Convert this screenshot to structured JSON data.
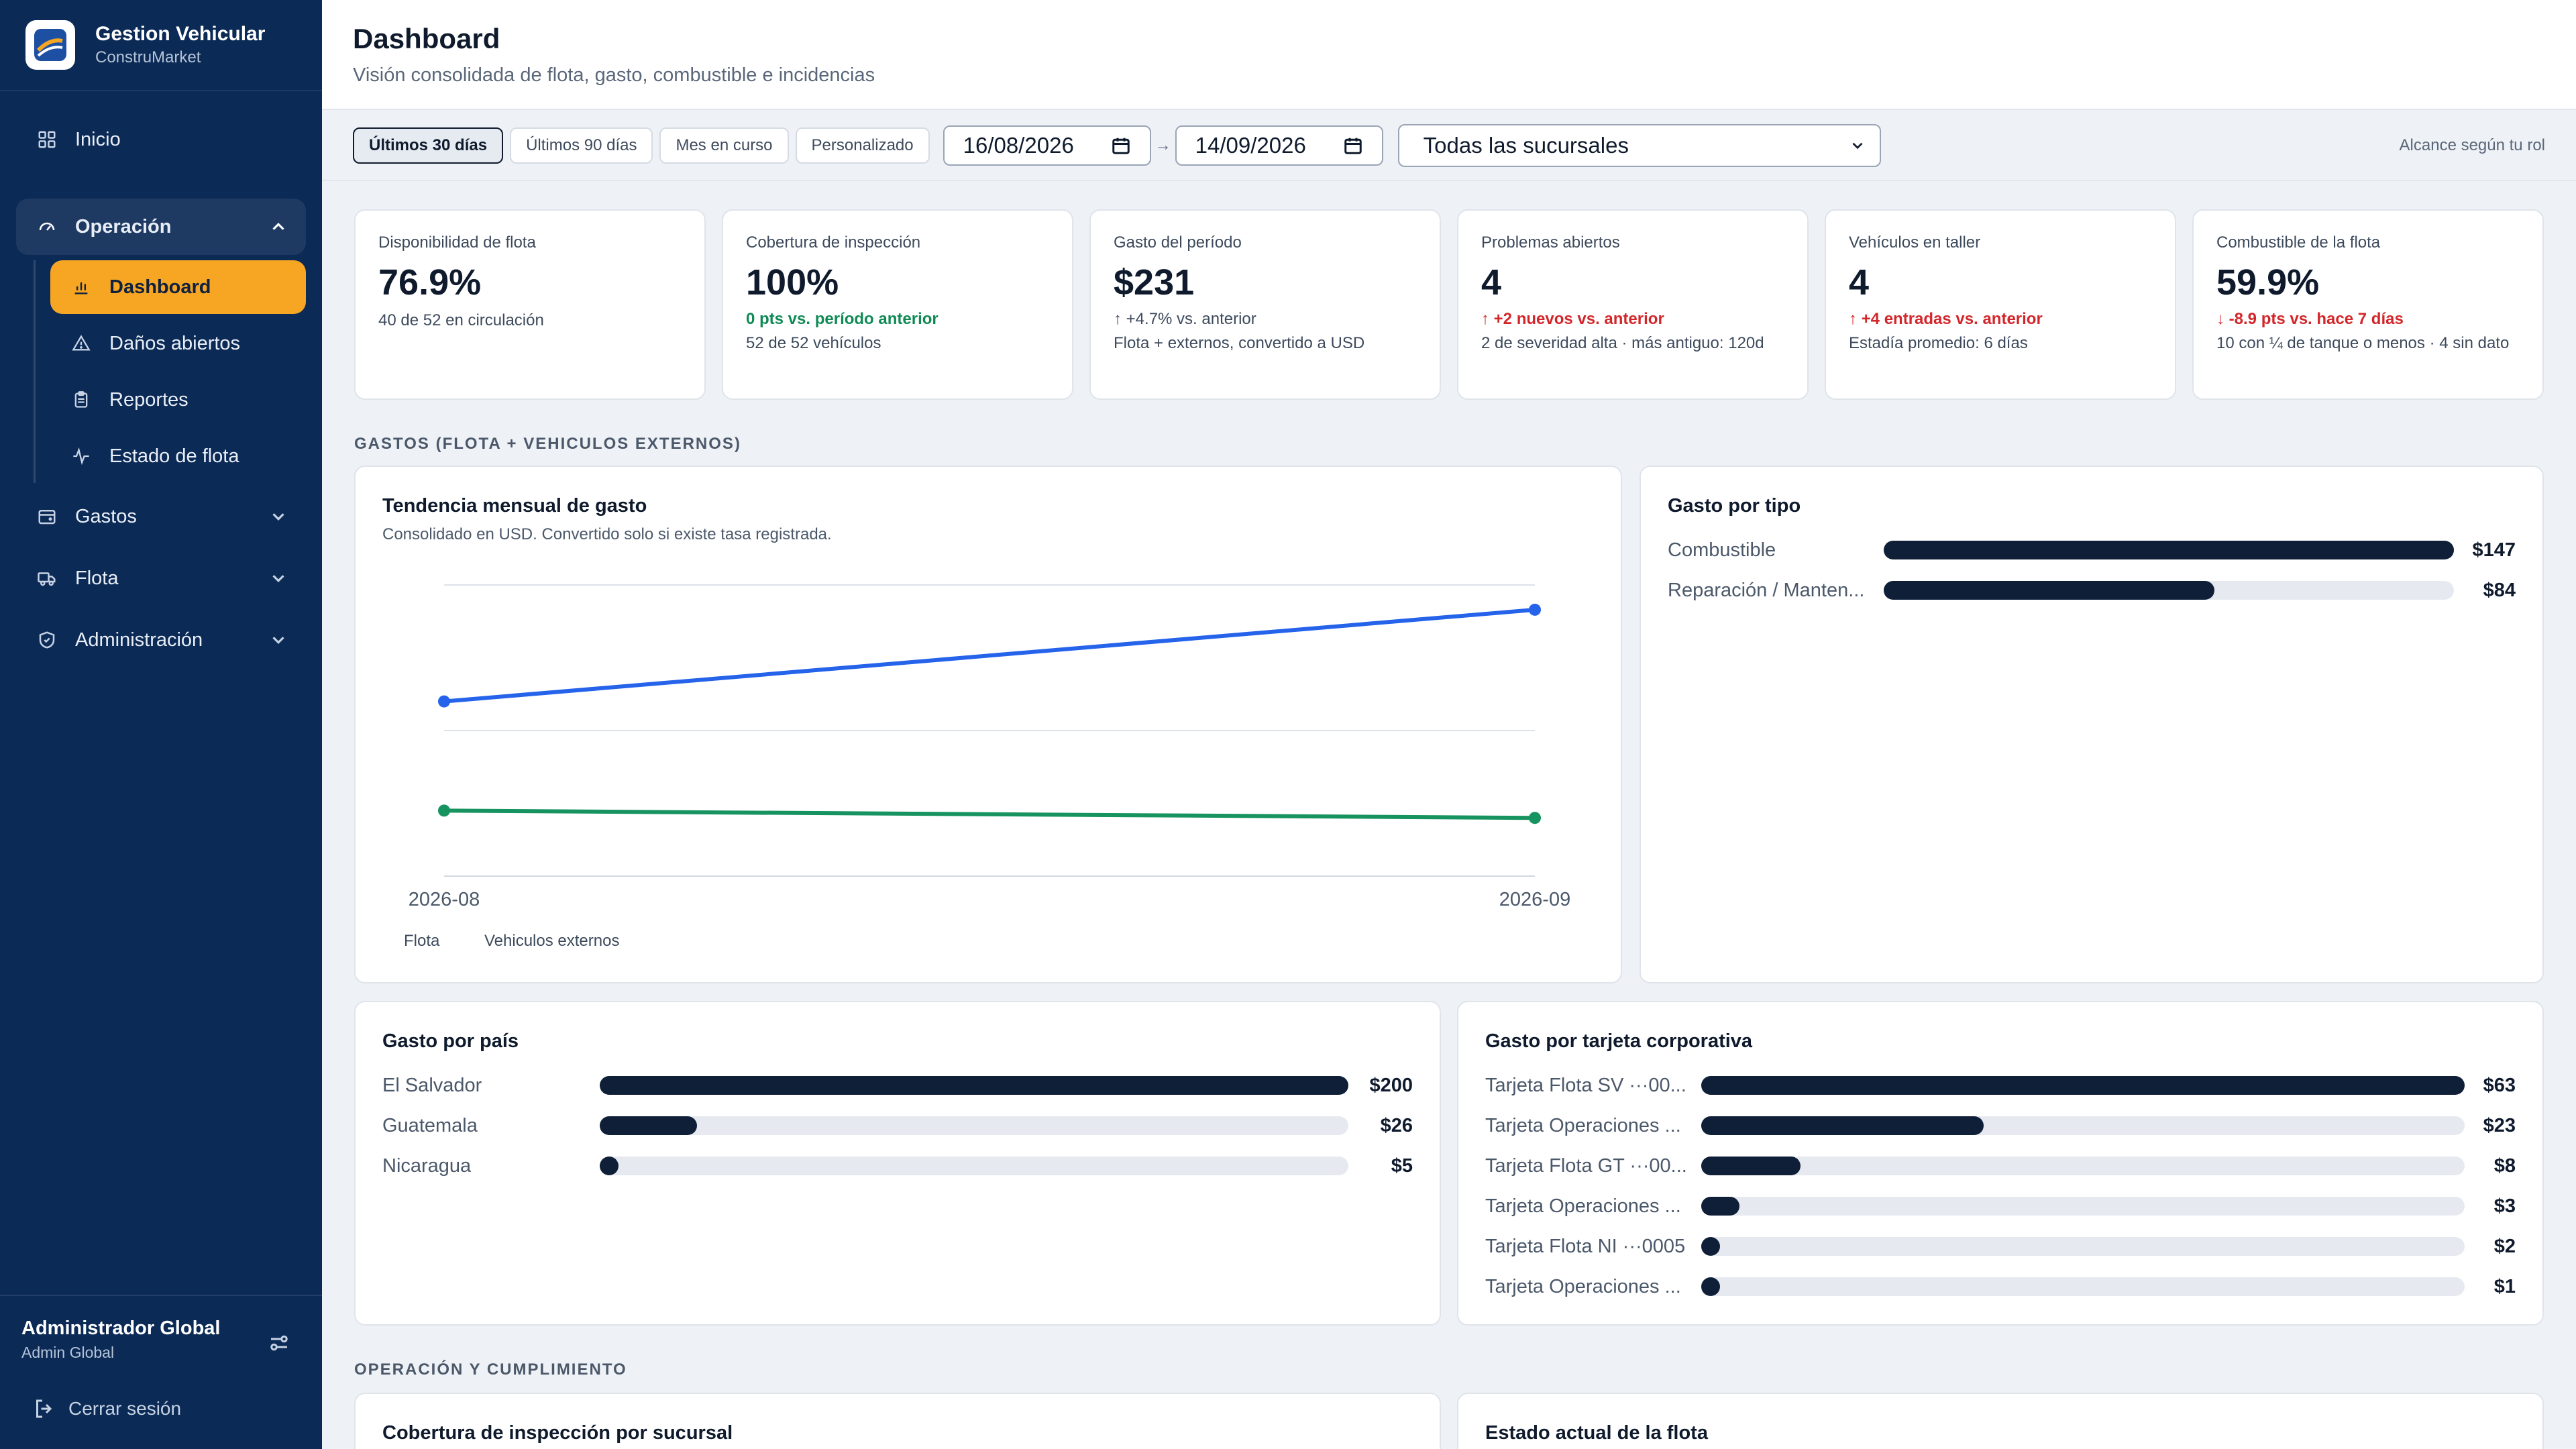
{
  "sidebar": {
    "brand_title": "Gestion Vehicular",
    "brand_sub": "ConstruMarket",
    "inicio": "Inicio",
    "operacion": "Operación",
    "sub_items": [
      "Dashboard",
      "Daños abiertos",
      "Reportes",
      "Estado de flota"
    ],
    "gastos": "Gastos",
    "flota": "Flota",
    "administracion": "Administración",
    "user_name": "Administrador Global",
    "user_role": "Admin Global",
    "logout": "Cerrar sesión"
  },
  "header": {
    "title": "Dashboard",
    "subtitle": "Visión consolidada de flota, gasto, combustible e incidencias"
  },
  "filters": {
    "chips": [
      "Últimos 30 días",
      "Últimos 90 días",
      "Mes en curso",
      "Personalizado"
    ],
    "active_chip": "Últimos 30 días",
    "date_from": "16/08/2026",
    "date_to": "14/09/2026",
    "branch": "Todas las sucursales",
    "scope_note": "Alcance según tu rol"
  },
  "kpis": [
    {
      "label": "Disponibilidad de flota",
      "value": "76.9%",
      "delta": "",
      "note": "40 de 52 en circulación"
    },
    {
      "label": "Cobertura de inspección",
      "value": "100%",
      "delta": "0 pts vs. período anterior",
      "note": "52 de 52 vehículos"
    },
    {
      "label": "Gasto del período",
      "value": "$231",
      "delta": "↑ +4.7% vs. anterior",
      "note": "Flota + externos, convertido a USD"
    },
    {
      "label": "Problemas abiertos",
      "value": "4",
      "delta": "↑ +2 nuevos vs. anterior",
      "note": "2 de severidad alta · más antiguo: 120d"
    },
    {
      "label": "Vehículos en taller",
      "value": "4",
      "delta": "↑ +4 entradas vs. anterior",
      "note": "Estadía promedio: 6 días"
    },
    {
      "label": "Combustible de la flota",
      "value": "59.9%",
      "delta": "↓ -8.9 pts vs. hace 7 días",
      "note": "10 con ¼ de tanque o menos · 4 sin dato"
    }
  ],
  "sections": {
    "gastos": "GASTOS (FLOTA + VEHICULOS EXTERNOS)",
    "operacion": "OPERACIÓN Y CUMPLIMIENTO"
  },
  "trend_card": {
    "title": "Tendencia mensual de gasto",
    "subtitle": "Consolidado en USD. Convertido solo si existe tasa registrada."
  },
  "chart_data": {
    "type": "line",
    "title": "Tendencia mensual de gasto",
    "x": [
      "2026-08",
      "2026-09"
    ],
    "series": [
      {
        "name": "Flota",
        "values": [
          120,
          183
        ],
        "color": "#2563eb"
      },
      {
        "name": "Vehiculos externos",
        "values": [
          45,
          40
        ],
        "color": "#16935f"
      }
    ],
    "ylim": [
      0,
      200
    ],
    "grid": true,
    "legend": "bottom-left"
  },
  "type_card": {
    "title": "Gasto por tipo",
    "rows": [
      {
        "label": "Combustible",
        "value": "$147",
        "fraction": 1.0
      },
      {
        "label": "Reparación / Manten...",
        "value": "$84",
        "fraction": 0.58
      }
    ]
  },
  "country_card": {
    "title": "Gasto por país",
    "rows": [
      {
        "label": "El Salvador",
        "value": "$200",
        "fraction": 1.0
      },
      {
        "label": "Guatemala",
        "value": "$26",
        "fraction": 0.13
      },
      {
        "label": "Nicaragua",
        "value": "$5",
        "fraction": 0.025
      }
    ]
  },
  "card_card": {
    "title": "Gasto por tarjeta corporativa",
    "rows": [
      {
        "label": "Tarjeta Flota SV ···00...",
        "value": "$63",
        "fraction": 1.0
      },
      {
        "label": "Tarjeta Operaciones ...",
        "value": "$23",
        "fraction": 0.37
      },
      {
        "label": "Tarjeta Flota GT ···00...",
        "value": "$8",
        "fraction": 0.13
      },
      {
        "label": "Tarjeta Operaciones ...",
        "value": "$3",
        "fraction": 0.05
      },
      {
        "label": "Tarjeta Flota NI ···0005",
        "value": "$2",
        "fraction": 0.025
      },
      {
        "label": "Tarjeta Operaciones ...",
        "value": "$1",
        "fraction": 0.02
      }
    ]
  },
  "bottom_cards": {
    "inspection": "Cobertura de inspección por sucursal",
    "fleet_state": "Estado actual de la flota"
  }
}
